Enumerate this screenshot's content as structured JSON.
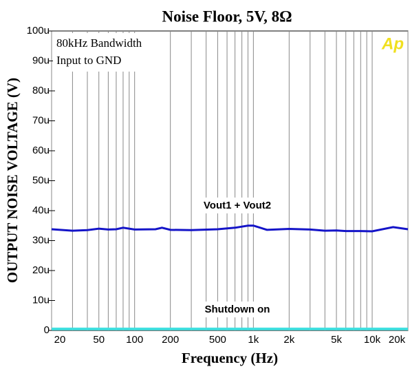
{
  "chart_data": {
    "type": "line",
    "title": "Noise Floor, 5V, 8Ω",
    "x_label": "Frequency (Hz)",
    "y_label": "OUTPUT NOISE VOLTAGE (V)",
    "annotations": [
      "80kHz Bandwidth",
      "Input to GND"
    ],
    "logo": "Ap",
    "xscale": "log",
    "xlim": [
      20,
      20000
    ],
    "xticks": [
      20,
      50,
      100,
      200,
      500,
      {
        "value": 1000,
        "label": "1k"
      },
      {
        "value": 2000,
        "label": "2k"
      },
      {
        "value": 5000,
        "label": "5k"
      },
      {
        "value": 10000,
        "label": "10k"
      },
      {
        "value": 20000,
        "label": "20k"
      }
    ],
    "xgrid": [
      30,
      40,
      60,
      70,
      80,
      90,
      300,
      400,
      600,
      700,
      800,
      900,
      3000,
      4000,
      6000,
      7000,
      8000,
      9000
    ],
    "ylim": [
      0,
      100
    ],
    "yticks": [
      0,
      {
        "value": 10,
        "label": "10u"
      },
      {
        "value": 20,
        "label": "20u"
      },
      {
        "value": 30,
        "label": "30u"
      },
      {
        "value": 40,
        "label": "40u"
      },
      {
        "value": 50,
        "label": "50u"
      },
      {
        "value": 60,
        "label": "60u"
      },
      {
        "value": 70,
        "label": "70u"
      },
      {
        "value": 80,
        "label": "80u"
      },
      {
        "value": 90,
        "label": "90u"
      },
      {
        "value": 100,
        "label": "100u"
      }
    ],
    "x": [
      20,
      30,
      40,
      50,
      60,
      70,
      80,
      100,
      150,
      170,
      200,
      300,
      500,
      700,
      900,
      1000,
      1300,
      2000,
      3000,
      4000,
      5000,
      6000,
      8000,
      10000,
      15000,
      20000
    ],
    "series": [
      {
        "name": "Vout1 + Vout2",
        "color": "#1414c8",
        "values": [
          33.8,
          33.3,
          33.5,
          34.0,
          33.7,
          33.8,
          34.3,
          33.7,
          33.8,
          34.3,
          33.6,
          33.5,
          33.8,
          34.3,
          35.0,
          35.0,
          33.6,
          33.9,
          33.7,
          33.3,
          33.4,
          33.2,
          33.2,
          33.1,
          34.5,
          33.8
        ]
      },
      {
        "name": "Shutdown on",
        "color": "#40e0e0",
        "values": [
          0.5,
          0.5,
          0.5,
          0.5,
          0.5,
          0.5,
          0.5,
          0.5,
          0.5,
          0.5,
          0.5,
          0.5,
          0.5,
          0.5,
          0.5,
          0.5,
          0.5,
          0.5,
          0.5,
          0.5,
          0.5,
          0.5,
          0.5,
          0.5,
          0.5,
          0.5
        ]
      }
    ]
  }
}
